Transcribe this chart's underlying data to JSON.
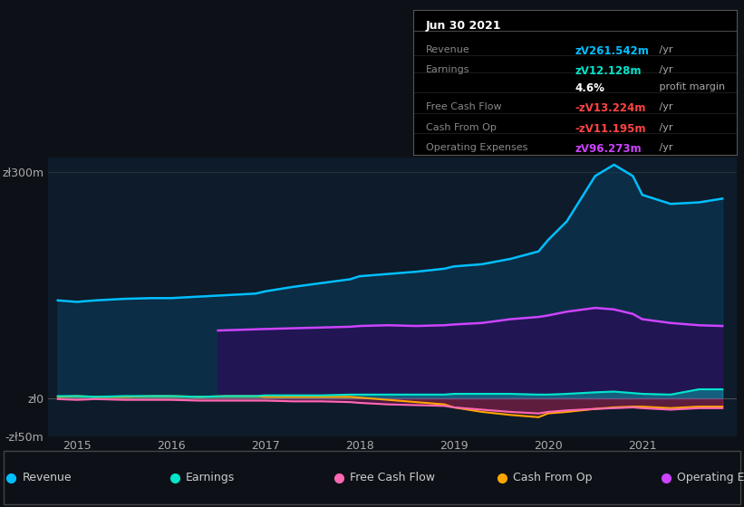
{
  "bg_color": "#0d1117",
  "plot_bg_color": "#0d1b2a",
  "ylim": [
    -50,
    320
  ],
  "xlim_start": 2014.7,
  "xlim_end": 2022.0,
  "xticks": [
    2015,
    2016,
    2017,
    2018,
    2019,
    2020,
    2021
  ],
  "legend": [
    {
      "label": "Revenue",
      "color": "#00bfff"
    },
    {
      "label": "Earnings",
      "color": "#00e5cc"
    },
    {
      "label": "Free Cash Flow",
      "color": "#ff69b4"
    },
    {
      "label": "Cash From Op",
      "color": "#ffa500"
    },
    {
      "label": "Operating Expenses",
      "color": "#cc44ff"
    }
  ],
  "info_title": "Jun 30 2021",
  "info_rows": [
    {
      "label": "Revenue",
      "value": "zᐯ261.542m",
      "unit": " /yr",
      "value_color": "#00bfff"
    },
    {
      "label": "Earnings",
      "value": "zᐯ12.128m",
      "unit": " /yr",
      "value_color": "#00e5cc"
    },
    {
      "label": "",
      "value": "4.6%",
      "unit": " profit margin",
      "value_color": "#ffffff"
    },
    {
      "label": "Free Cash Flow",
      "value": "-zᐯ13.224m",
      "unit": " /yr",
      "value_color": "#ff4444"
    },
    {
      "label": "Cash From Op",
      "value": "-zᐯ11.195m",
      "unit": " /yr",
      "value_color": "#ff4444"
    },
    {
      "label": "Operating Expenses",
      "value": "zᐯ96.273m",
      "unit": " /yr",
      "value_color": "#cc44ff"
    }
  ]
}
